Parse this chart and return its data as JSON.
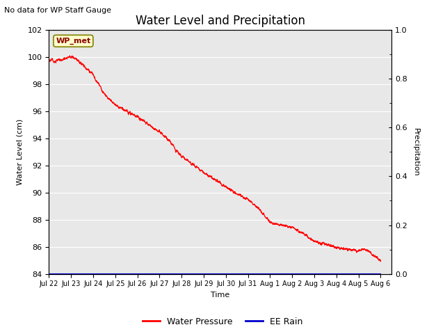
{
  "title": "Water Level and Precipitation",
  "top_left_text": "No data for WP Staff Gauge",
  "xlabel": "Time",
  "ylabel_left": "Water Level (cm)",
  "ylabel_right": "Precipitation",
  "wp_label": "WP_met",
  "ylim_left": [
    84,
    102
  ],
  "ylim_right": [
    0.0,
    1.0
  ],
  "yticks_left": [
    84,
    86,
    88,
    90,
    92,
    94,
    96,
    98,
    100,
    102
  ],
  "yticks_right": [
    0.0,
    0.2,
    0.4,
    0.6,
    0.8,
    1.0
  ],
  "water_pressure_color": "#FF0000",
  "ee_rain_color": "#0000CC",
  "bg_color": "#E8E8E8",
  "fig_color": "#FFFFFF",
  "legend_items": [
    "Water Pressure",
    "EE Rain"
  ],
  "xlim": [
    0,
    15.5
  ],
  "xtick_labels": [
    "Jul 22",
    "Jul 23",
    "Jul 24",
    "Jul 25",
    "Jul 26",
    "Jul 27",
    "Jul 28",
    "Jul 29",
    "Jul 30",
    "Jul 31",
    "Aug 1",
    "Aug 2",
    "Aug 3",
    "Aug 4",
    "Aug 5",
    "Aug 6"
  ],
  "xtick_positions": [
    0,
    1,
    2,
    3,
    4,
    5,
    6,
    7,
    8,
    9,
    10,
    11,
    12,
    13,
    14,
    15
  ],
  "wp_label_color": "#8B0000",
  "wp_box_facecolor": "#FFFFCC",
  "wp_box_edgecolor": "#808000",
  "key_points_t": [
    0.0,
    0.3,
    0.6,
    0.9,
    1.0,
    1.2,
    1.5,
    2.0,
    2.5,
    3.0,
    3.5,
    4.0,
    4.5,
    5.0,
    5.5,
    6.0,
    6.5,
    7.0,
    7.5,
    8.0,
    8.5,
    9.0,
    9.5,
    10.0,
    10.5,
    11.0,
    11.5,
    12.0,
    12.5,
    13.0,
    13.5,
    14.0,
    14.3,
    14.5,
    14.8,
    15.0
  ],
  "key_points_v": [
    99.8,
    99.7,
    99.8,
    100.0,
    100.0,
    99.9,
    99.5,
    98.7,
    97.3,
    96.5,
    96.0,
    95.6,
    95.0,
    94.5,
    93.7,
    92.7,
    92.1,
    91.5,
    91.0,
    90.4,
    89.9,
    89.5,
    88.8,
    87.8,
    87.6,
    87.4,
    87.0,
    86.4,
    86.2,
    86.0,
    85.8,
    85.7,
    85.8,
    85.6,
    85.2,
    85.0
  ]
}
